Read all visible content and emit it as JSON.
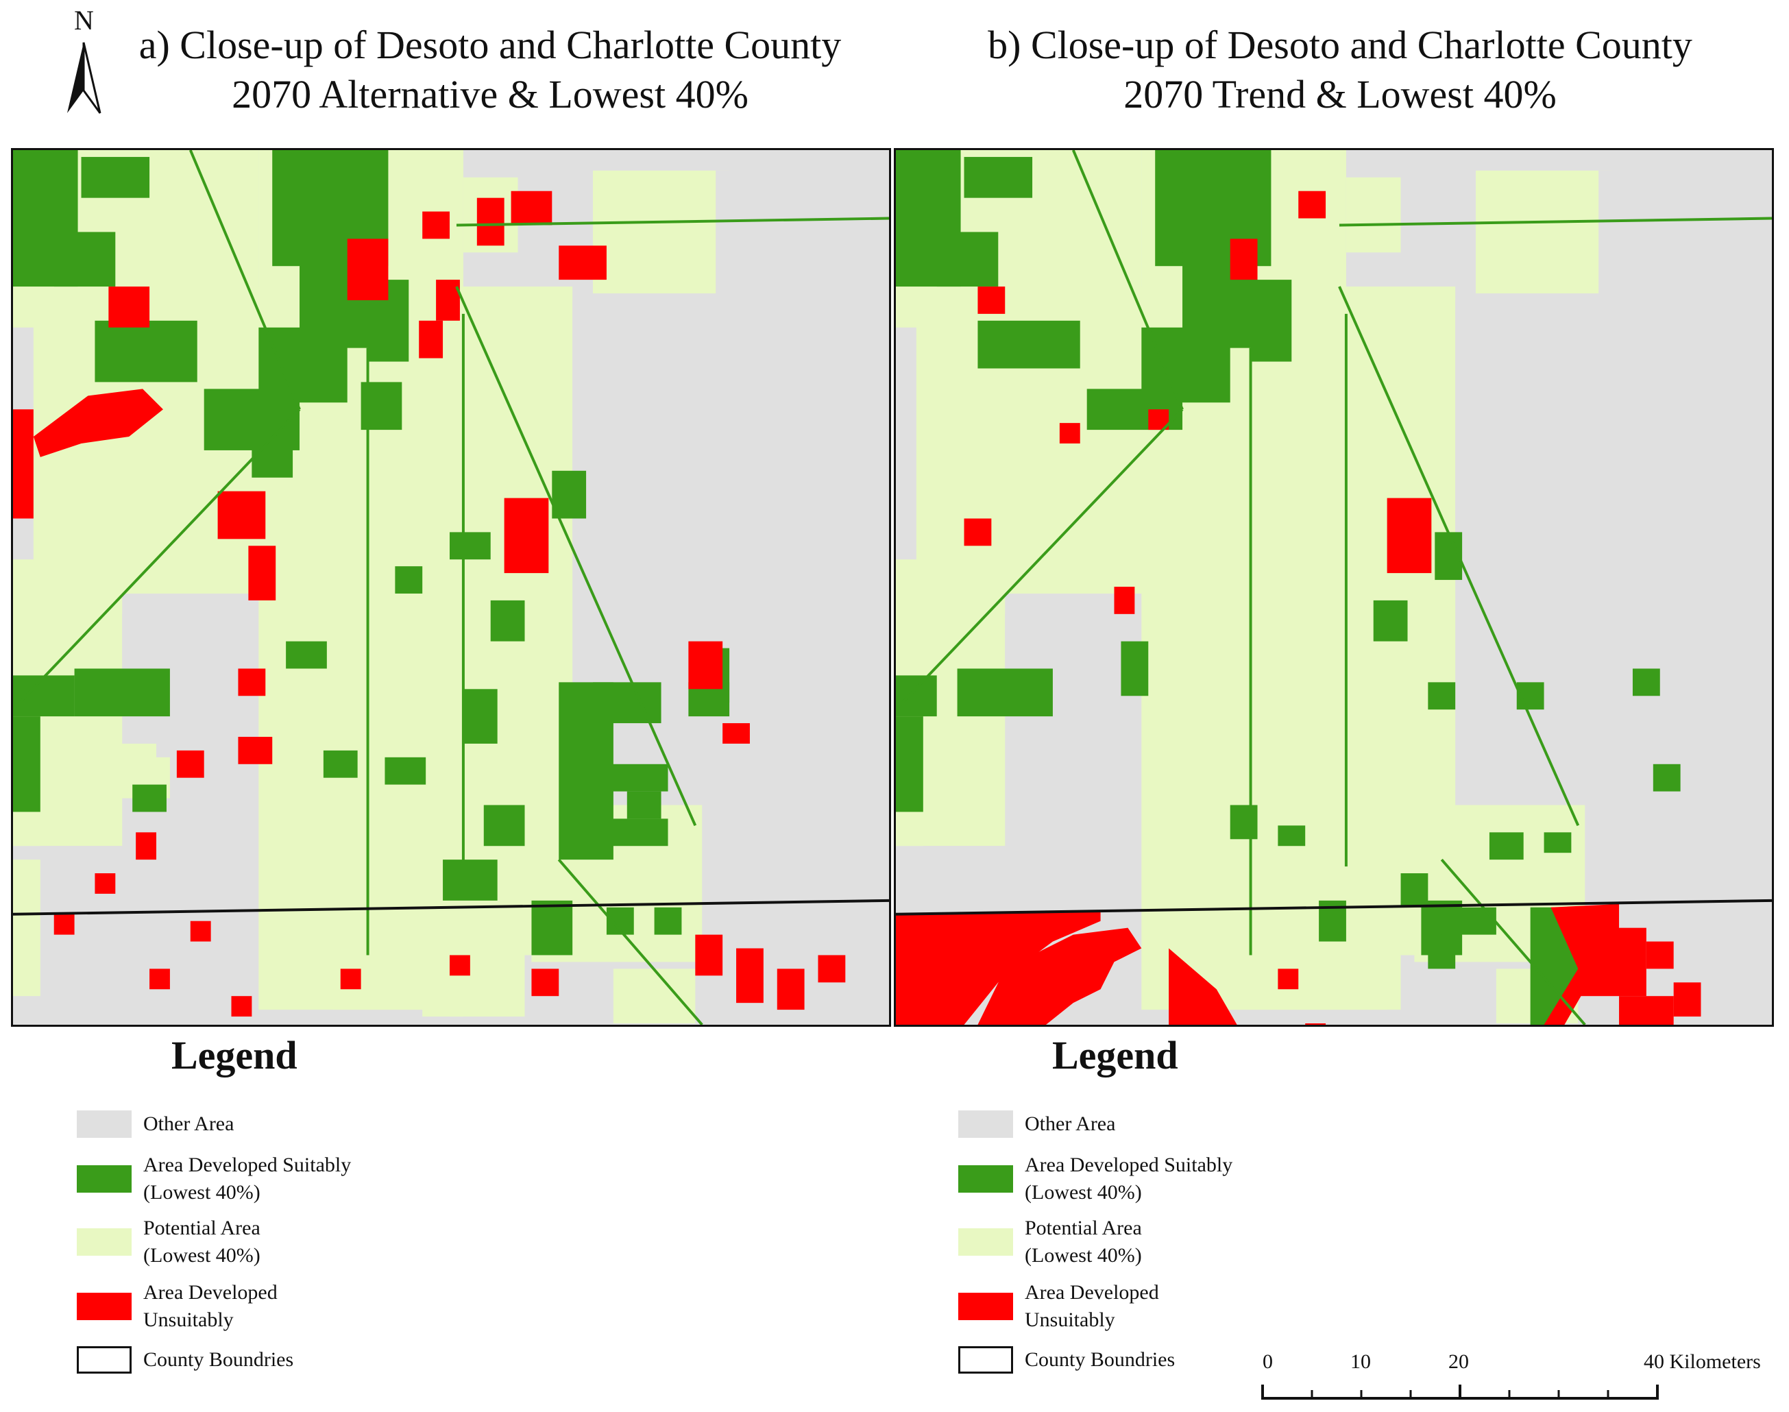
{
  "north_arrow": {
    "letter": "N"
  },
  "panels": [
    {
      "id": "a",
      "title_line1": "a) Close-up of Desoto and Charlotte County",
      "title_line2": "2070 Alternative & Lowest 40%"
    },
    {
      "id": "b",
      "title_line1": "b) Close-up of Desoto and Charlotte County",
      "title_line2": "2070 Trend & Lowest 40%"
    }
  ],
  "legend": {
    "title": "Legend",
    "items": [
      {
        "label": "Other Area",
        "color": "#e0e0e0"
      },
      {
        "label": "Area Developed Suitably\n(Lowest 40%)",
        "color": "#3a9c1a"
      },
      {
        "label": "Potential Area\n(Lowest 40%)",
        "color": "#e8f8c2"
      },
      {
        "label": "Area Developed\nUnsuitably",
        "color": "#ff0000"
      },
      {
        "label": "County Boundries",
        "color": "#ffffff"
      }
    ]
  },
  "scale_bar": {
    "labels": [
      "0",
      "10",
      "20",
      "40 Kilometers"
    ],
    "unit": "Kilometers"
  },
  "colors": {
    "other_area": "#e0e0e0",
    "suitable": "#3a9c1a",
    "potential": "#e8f8c2",
    "unsuitable": "#ff0000",
    "boundary": "#111111"
  }
}
